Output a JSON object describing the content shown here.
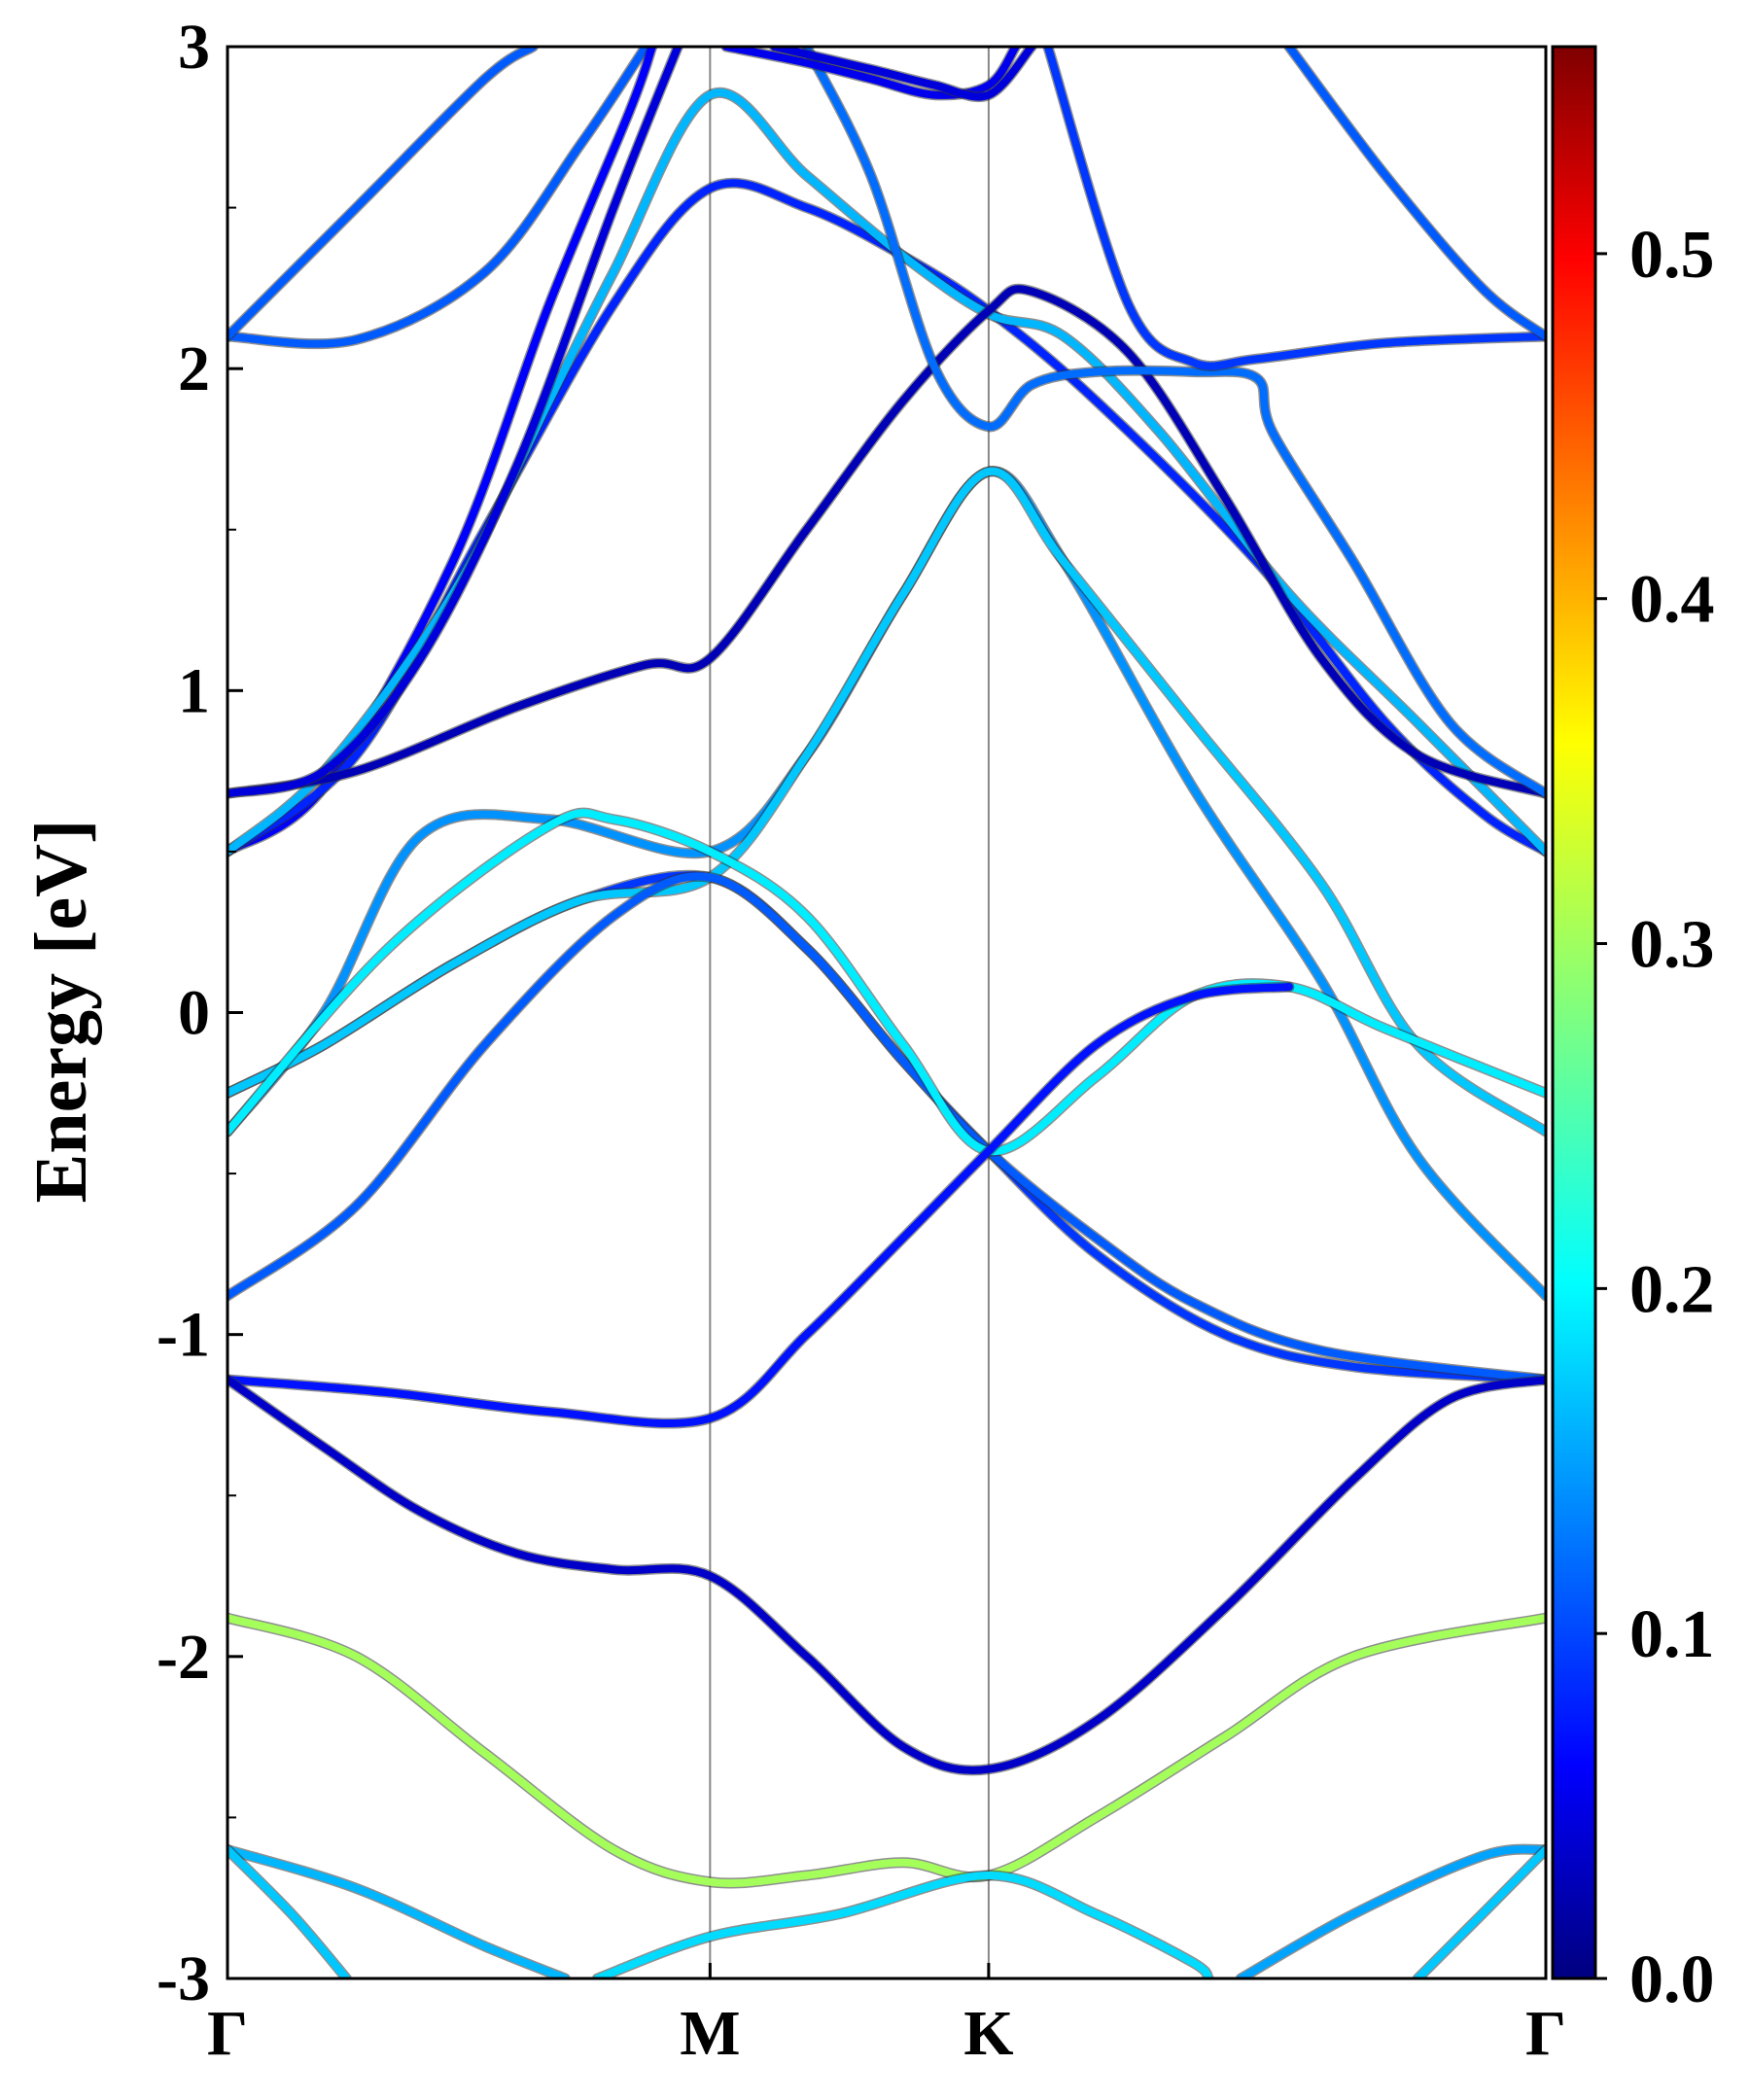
{
  "chart_data": {
    "type": "line",
    "title": "",
    "ylabel": "Energy [eV]",
    "xlabel": "",
    "ylim": [
      -3,
      3
    ],
    "y_ticks": [
      "3",
      "2",
      "1",
      "0",
      "-1",
      "-2",
      "-3"
    ],
    "y_tick_values": [
      3,
      2,
      1,
      0,
      -1,
      -2,
      -3
    ],
    "x_ticks": [
      "Γ",
      "M",
      "K",
      "Γ"
    ],
    "x_tick_positions": [
      0,
      1.5,
      2.366,
      4.098
    ],
    "xlim": [
      0,
      4.098
    ],
    "grid": false,
    "vertical_lines_at": [
      1.5,
      2.366
    ],
    "colorbar": {
      "colormap": "jet",
      "range": [
        0,
        0.56
      ],
      "tick_labels": [
        "0.0",
        "0.1",
        "0.2",
        "0.3",
        "0.4",
        "0.5"
      ],
      "tick_values": [
        0.0,
        0.1,
        0.2,
        0.3,
        0.4,
        0.5
      ]
    },
    "series": [
      {
        "points": [
          [
            0,
            2.1
          ],
          [
            0.4,
            2.09
          ],
          [
            0.8,
            2.3
          ],
          [
            1.1,
            2.7
          ],
          [
            1.3,
            3.0
          ]
        ],
        "color_value": 0.12
      },
      {
        "points": [
          [
            0,
            2.1
          ],
          [
            0.4,
            2.5
          ],
          [
            0.8,
            2.9
          ],
          [
            0.95,
            3.0
          ]
        ],
        "color_value": 0.12
      },
      {
        "points": [
          [
            0,
            0.5
          ],
          [
            0.3,
            0.7
          ],
          [
            0.7,
            1.4
          ],
          [
            1.0,
            2.2
          ],
          [
            1.25,
            2.8
          ],
          [
            1.32,
            3.0
          ]
        ],
        "color_value": 0.07
      },
      {
        "points": [
          [
            0,
            0.5
          ],
          [
            0.4,
            0.8
          ],
          [
            0.8,
            1.5
          ],
          [
            1.2,
            2.2
          ],
          [
            1.5,
            2.56
          ],
          [
            1.8,
            2.5
          ],
          [
            2.1,
            2.35
          ],
          [
            2.366,
            2.18
          ],
          [
            2.7,
            1.9
          ],
          [
            3.2,
            1.4
          ],
          [
            3.6,
            0.9
          ],
          [
            3.9,
            0.62
          ],
          [
            4.098,
            0.5
          ]
        ],
        "color_value": 0.09
      },
      {
        "points": [
          [
            0,
            0.5
          ],
          [
            0.3,
            0.75
          ],
          [
            0.7,
            1.3
          ],
          [
            1.0,
            1.9
          ],
          [
            1.2,
            2.3
          ],
          [
            1.5,
            2.85
          ],
          [
            1.8,
            2.6
          ],
          [
            2.1,
            2.35
          ],
          [
            2.366,
            2.17
          ],
          [
            2.6,
            2.1
          ],
          [
            2.9,
            1.8
          ],
          [
            3.3,
            1.3
          ],
          [
            3.7,
            0.9
          ],
          [
            4.098,
            0.5
          ]
        ],
        "color_value": 0.17
      },
      {
        "points": [
          [
            0,
            0.68
          ],
          [
            0.4,
            0.75
          ],
          [
            0.9,
            0.95
          ],
          [
            1.3,
            1.08
          ],
          [
            1.5,
            1.1
          ],
          [
            1.8,
            1.5
          ],
          [
            2.1,
            1.9
          ],
          [
            2.366,
            2.18
          ],
          [
            2.5,
            2.24
          ],
          [
            2.8,
            2.05
          ],
          [
            3.1,
            1.6
          ],
          [
            3.4,
            1.1
          ],
          [
            3.7,
            0.8
          ],
          [
            4.098,
            0.68
          ]
        ],
        "color_value": 0.03
      },
      {
        "points": [
          [
            0,
            0.68
          ],
          [
            0.3,
            0.75
          ],
          [
            0.6,
            1.1
          ],
          [
            0.9,
            1.7
          ],
          [
            1.2,
            2.5
          ],
          [
            1.4,
            3.0
          ]
        ],
        "color_value": 0.05
      },
      {
        "points": [
          [
            1.8,
            3.0
          ],
          [
            2.0,
            2.6
          ],
          [
            2.2,
            2.0
          ],
          [
            2.366,
            1.82
          ],
          [
            2.5,
            1.95
          ],
          [
            2.7,
            1.99
          ],
          [
            3.0,
            1.99
          ],
          [
            3.2,
            1.97
          ],
          [
            3.25,
            1.8
          ],
          [
            3.5,
            1.4
          ],
          [
            3.8,
            0.9
          ],
          [
            4.098,
            0.68
          ]
        ],
        "color_value": 0.13
      },
      {
        "points": [
          [
            2.55,
            3.0
          ],
          [
            2.8,
            2.2
          ],
          [
            3.0,
            2.02
          ],
          [
            3.2,
            2.03
          ],
          [
            3.6,
            2.08
          ],
          [
            4.098,
            2.1
          ]
        ],
        "color_value": 0.1
      },
      {
        "points": [
          [
            3.3,
            3.0
          ],
          [
            3.6,
            2.6
          ],
          [
            3.9,
            2.25
          ],
          [
            4.098,
            2.1
          ]
        ],
        "color_value": 0.12
      },
      {
        "points": [
          [
            1.55,
            3.0
          ],
          [
            1.8,
            2.95
          ],
          [
            2.0,
            2.9
          ],
          [
            2.2,
            2.85
          ],
          [
            2.366,
            2.88
          ],
          [
            2.45,
            3.0
          ]
        ],
        "color_value": 0.06
      },
      {
        "points": [
          [
            1.7,
            3.0
          ],
          [
            2.0,
            2.93
          ],
          [
            2.2,
            2.88
          ],
          [
            2.366,
            2.85
          ],
          [
            2.5,
            3.0
          ]
        ],
        "color_value": 0.05
      },
      {
        "points": [
          [
            0,
            -0.25
          ],
          [
            0.3,
            -0.1
          ],
          [
            0.7,
            0.15
          ],
          [
            1.1,
            0.35
          ],
          [
            1.5,
            0.42
          ],
          [
            1.8,
            0.2
          ],
          [
            2.1,
            -0.15
          ],
          [
            2.366,
            -0.43
          ],
          [
            2.7,
            -0.75
          ],
          [
            3.1,
            -1.0
          ],
          [
            3.5,
            -1.1
          ],
          [
            4.098,
            -1.14
          ]
        ],
        "color_value": 0.1
      },
      {
        "points": [
          [
            0,
            -0.37
          ],
          [
            0.3,
            0.0
          ],
          [
            0.6,
            0.55
          ],
          [
            1.0,
            0.6
          ],
          [
            1.5,
            0.5
          ],
          [
            1.8,
            0.8
          ],
          [
            2.1,
            1.3
          ],
          [
            2.366,
            1.68
          ],
          [
            2.6,
            1.4
          ],
          [
            3.0,
            0.7
          ],
          [
            3.4,
            0.1
          ],
          [
            3.7,
            -0.45
          ],
          [
            4.098,
            -0.88
          ]
        ],
        "color_value": 0.15
      },
      {
        "points": [
          [
            0,
            -0.25
          ],
          [
            0.3,
            -0.1
          ],
          [
            0.7,
            0.15
          ],
          [
            1.1,
            0.35
          ],
          [
            1.5,
            0.42
          ],
          [
            1.8,
            0.8
          ],
          [
            2.1,
            1.3
          ],
          [
            2.366,
            1.68
          ],
          [
            2.6,
            1.4
          ],
          [
            3.0,
            0.9
          ],
          [
            3.4,
            0.4
          ],
          [
            3.7,
            -0.1
          ],
          [
            4.098,
            -0.37
          ]
        ],
        "color_value": 0.18
      },
      {
        "points": [
          [
            0,
            -0.88
          ],
          [
            0.4,
            -0.6
          ],
          [
            0.8,
            -0.1
          ],
          [
            1.2,
            0.3
          ],
          [
            1.5,
            0.42
          ],
          [
            1.8,
            0.2
          ],
          [
            2.1,
            -0.15
          ],
          [
            2.366,
            -0.43
          ],
          [
            2.7,
            -0.7
          ],
          [
            3.0,
            -0.9
          ],
          [
            3.4,
            -1.05
          ],
          [
            4.098,
            -1.14
          ]
        ],
        "color_value": 0.12
      },
      {
        "points": [
          [
            0,
            -0.37
          ],
          [
            0.5,
            0.2
          ],
          [
            1.0,
            0.58
          ],
          [
            1.2,
            0.6
          ],
          [
            1.5,
            0.5
          ],
          [
            1.8,
            0.3
          ],
          [
            2.1,
            -0.1
          ],
          [
            2.366,
            -0.43
          ],
          [
            2.7,
            -0.2
          ],
          [
            3.0,
            0.05
          ],
          [
            3.3,
            0.08
          ],
          [
            3.6,
            -0.05
          ],
          [
            4.098,
            -0.25
          ]
        ],
        "color_value": 0.2
      },
      {
        "points": [
          [
            0,
            -1.14
          ],
          [
            0.5,
            -1.18
          ],
          [
            1.0,
            -1.24
          ],
          [
            1.5,
            -1.26
          ],
          [
            1.8,
            -1.0
          ],
          [
            2.1,
            -0.7
          ],
          [
            2.366,
            -0.43
          ],
          [
            2.7,
            -0.1
          ],
          [
            3.0,
            0.05
          ],
          [
            3.3,
            0.08
          ]
        ],
        "color_value": 0.08
      },
      {
        "points": [
          [
            0,
            -1.14
          ],
          [
            0.3,
            -1.35
          ],
          [
            0.6,
            -1.55
          ],
          [
            0.9,
            -1.68
          ],
          [
            1.2,
            -1.73
          ],
          [
            1.5,
            -1.75
          ],
          [
            1.8,
            -2.0
          ],
          [
            2.1,
            -2.28
          ],
          [
            2.366,
            -2.35
          ],
          [
            2.7,
            -2.2
          ],
          [
            3.1,
            -1.85
          ],
          [
            3.5,
            -1.45
          ],
          [
            3.8,
            -1.2
          ],
          [
            4.098,
            -1.14
          ]
        ],
        "color_value": 0.04
      },
      {
        "points": [
          [
            0,
            -1.88
          ],
          [
            0.4,
            -2.0
          ],
          [
            0.8,
            -2.3
          ],
          [
            1.2,
            -2.6
          ],
          [
            1.5,
            -2.7
          ],
          [
            1.8,
            -2.68
          ],
          [
            2.1,
            -2.64
          ],
          [
            2.366,
            -2.68
          ],
          [
            2.7,
            -2.5
          ],
          [
            3.1,
            -2.25
          ],
          [
            3.5,
            -2.0
          ],
          [
            4.098,
            -1.88
          ]
        ],
        "color_value": 0.3
      },
      {
        "points": [
          [
            0,
            -2.6
          ],
          [
            0.4,
            -2.72
          ],
          [
            0.8,
            -2.9
          ],
          [
            1.05,
            -3.0
          ]
        ],
        "color_value": 0.17
      },
      {
        "points": [
          [
            0,
            -2.6
          ],
          [
            0.2,
            -2.8
          ],
          [
            0.37,
            -3.0
          ]
        ],
        "color_value": 0.18
      },
      {
        "points": [
          [
            1.15,
            -3.0
          ],
          [
            1.5,
            -2.87
          ],
          [
            1.9,
            -2.8
          ],
          [
            2.366,
            -2.68
          ],
          [
            2.7,
            -2.8
          ],
          [
            3.0,
            -2.95
          ],
          [
            3.05,
            -3.0
          ]
        ],
        "color_value": 0.19
      },
      {
        "points": [
          [
            3.15,
            -3.0
          ],
          [
            3.5,
            -2.8
          ],
          [
            3.9,
            -2.62
          ],
          [
            4.098,
            -2.6
          ]
        ],
        "color_value": 0.16
      },
      {
        "points": [
          [
            3.7,
            -3.0
          ],
          [
            3.9,
            -2.8
          ],
          [
            4.098,
            -2.6
          ]
        ],
        "color_value": 0.18
      }
    ]
  }
}
